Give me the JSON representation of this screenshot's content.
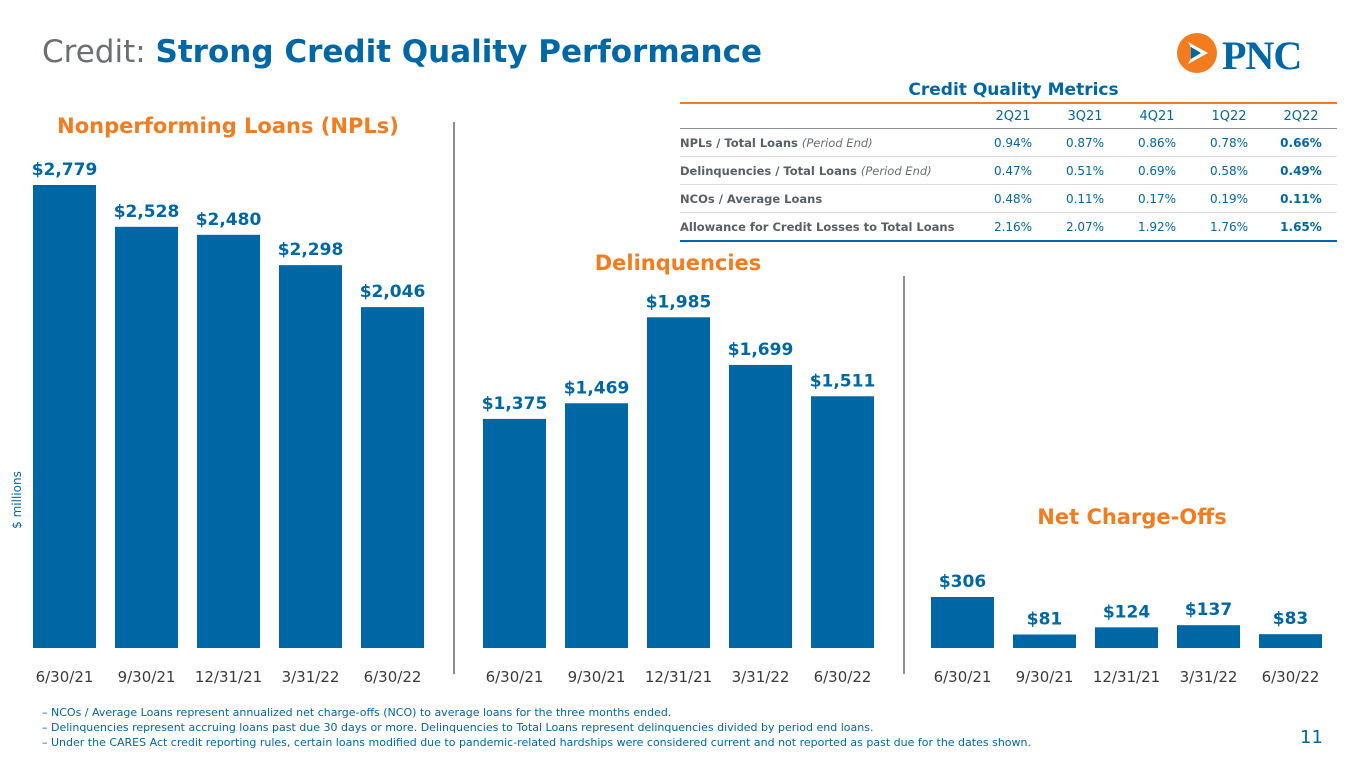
{
  "header": {
    "title_prefix": "Credit:",
    "title_main": "Strong Credit Quality Performance",
    "logo_text": "PNC"
  },
  "colors": {
    "bar": "#0067a5",
    "accent": "#f47c20",
    "text": "#3a3a3a"
  },
  "y_axis_label": "$ millions",
  "chart_data": [
    {
      "type": "bar",
      "title": "Nonperforming Loans (NPLs)",
      "categories": [
        "6/30/21",
        "9/30/21",
        "12/31/21",
        "3/31/22",
        "6/30/22"
      ],
      "values": [
        2779,
        2528,
        2480,
        2298,
        2046
      ],
      "value_labels": [
        "$2,779",
        "$2,528",
        "$2,480",
        "$2,298",
        "$2,046"
      ],
      "ylabel": "$ millions",
      "ylim": [
        0,
        2779
      ]
    },
    {
      "type": "bar",
      "title": "Delinquencies",
      "categories": [
        "6/30/21",
        "9/30/21",
        "12/31/21",
        "3/31/22",
        "6/30/22"
      ],
      "values": [
        1375,
        1469,
        1985,
        1699,
        1511
      ],
      "value_labels": [
        "$1,375",
        "$1,469",
        "$1,985",
        "$1,699",
        "$1,511"
      ],
      "ylim": [
        0,
        2779
      ]
    },
    {
      "type": "bar",
      "title": "Net Charge-Offs",
      "categories": [
        "6/30/21",
        "9/30/21",
        "12/31/21",
        "3/31/22",
        "6/30/22"
      ],
      "values": [
        306,
        81,
        124,
        137,
        83
      ],
      "value_labels": [
        "$306",
        "$81",
        "$124",
        "$137",
        "$83"
      ],
      "ylim": [
        0,
        2779
      ]
    }
  ],
  "metrics": {
    "title": "Credit Quality Metrics",
    "columns": [
      "2Q21",
      "3Q21",
      "4Q21",
      "1Q22",
      "2Q22"
    ],
    "rows": [
      {
        "label": "NPLs / Total Loans",
        "note": "(Period End)",
        "values": [
          "0.94%",
          "0.87%",
          "0.86%",
          "0.78%",
          "0.66%"
        ]
      },
      {
        "label": "Delinquencies / Total Loans",
        "note": "(Period End)",
        "values": [
          "0.47%",
          "0.51%",
          "0.69%",
          "0.58%",
          "0.49%"
        ]
      },
      {
        "label": "NCOs / Average Loans",
        "note": "",
        "values": [
          "0.48%",
          "0.11%",
          "0.17%",
          "0.19%",
          "0.11%"
        ]
      },
      {
        "label": "Allowance for Credit Losses to Total Loans",
        "note": "",
        "values": [
          "2.16%",
          "2.07%",
          "1.92%",
          "1.76%",
          "1.65%"
        ]
      }
    ]
  },
  "footnotes": [
    "– NCOs / Average Loans represent annualized net charge-offs (NCO) to average loans for the three months ended.",
    "– Delinquencies represent accruing loans past due 30 days or more. Delinquencies to Total Loans represent delinquencies divided by period end loans.",
    "– Under the CARES Act credit reporting rules, certain loans modified due to pandemic-related hardships were considered current and not reported as past due for the dates shown."
  ],
  "page_number": "11"
}
